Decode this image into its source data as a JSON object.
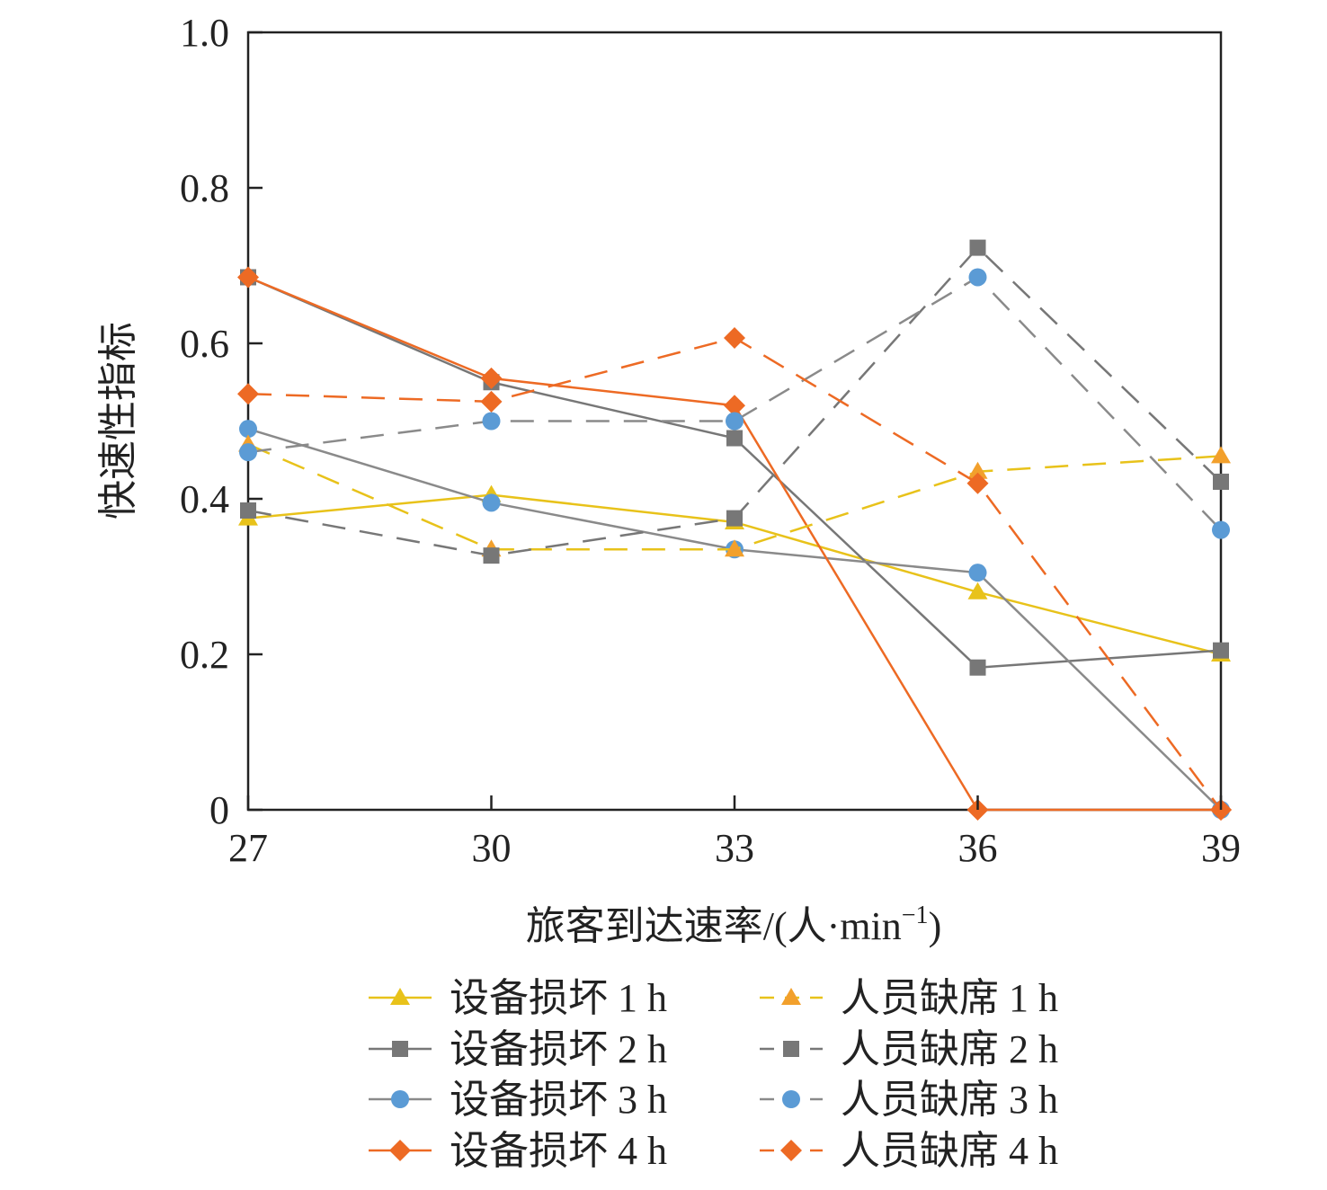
{
  "chart_data": {
    "type": "line",
    "xlabel": "旅客到达速率/(人·min",
    "xlabel_sup": "−1",
    "xlabel_tail": ")",
    "ylabel": "快速性指标",
    "x": [
      27,
      30,
      33,
      36,
      39
    ],
    "x_tick_labels": [
      "27",
      "30",
      "33",
      "36",
      "39"
    ],
    "y_tick_labels": [
      "0",
      "0.2",
      "0.4",
      "0.6",
      "0.8",
      "1.0"
    ],
    "xlim": [
      27,
      39
    ],
    "ylim": [
      0,
      1.0
    ],
    "grid": false,
    "legend_position": "bottom",
    "series": [
      {
        "name": "设备损坏 1 h",
        "color": "#E8C21A",
        "style": "solid",
        "marker": "triangle",
        "values": [
          0.375,
          0.405,
          0.37,
          0.28,
          0.2
        ]
      },
      {
        "name": "设备损坏 2 h",
        "color": "#777777",
        "style": "solid",
        "marker": "square",
        "values": [
          0.685,
          0.55,
          0.478,
          0.183,
          0.205
        ]
      },
      {
        "name": "设备损坏 3 h",
        "color": "#8A8A8A",
        "style": "solid",
        "marker": "circle",
        "marker_color": "#5B9BD5",
        "values": [
          0.49,
          0.395,
          0.335,
          0.305,
          0.0
        ]
      },
      {
        "name": "设备损坏 4 h",
        "color": "#ED6A24",
        "style": "solid",
        "marker": "diamond",
        "values": [
          0.685,
          0.555,
          0.52,
          0.0,
          0.0
        ]
      },
      {
        "name": "人员缺席 1 h",
        "color": "#E8C21A",
        "style": "dashed",
        "marker": "triangle",
        "marker_color": "#F2A02C",
        "values": [
          0.47,
          0.335,
          0.335,
          0.435,
          0.455
        ]
      },
      {
        "name": "人员缺席 2 h",
        "color": "#777777",
        "style": "dashed",
        "marker": "square",
        "values": [
          0.385,
          0.327,
          0.375,
          0.723,
          0.422
        ]
      },
      {
        "name": "人员缺席 3 h",
        "color": "#8A8A8A",
        "style": "dashed",
        "marker": "circle",
        "marker_color": "#5B9BD5",
        "values": [
          0.46,
          0.5,
          0.5,
          0.685,
          0.36
        ]
      },
      {
        "name": "人员缺席 4 h",
        "color": "#ED6A24",
        "style": "dashed",
        "marker": "diamond",
        "values": [
          0.535,
          0.525,
          0.607,
          0.42,
          0.0
        ]
      }
    ]
  }
}
